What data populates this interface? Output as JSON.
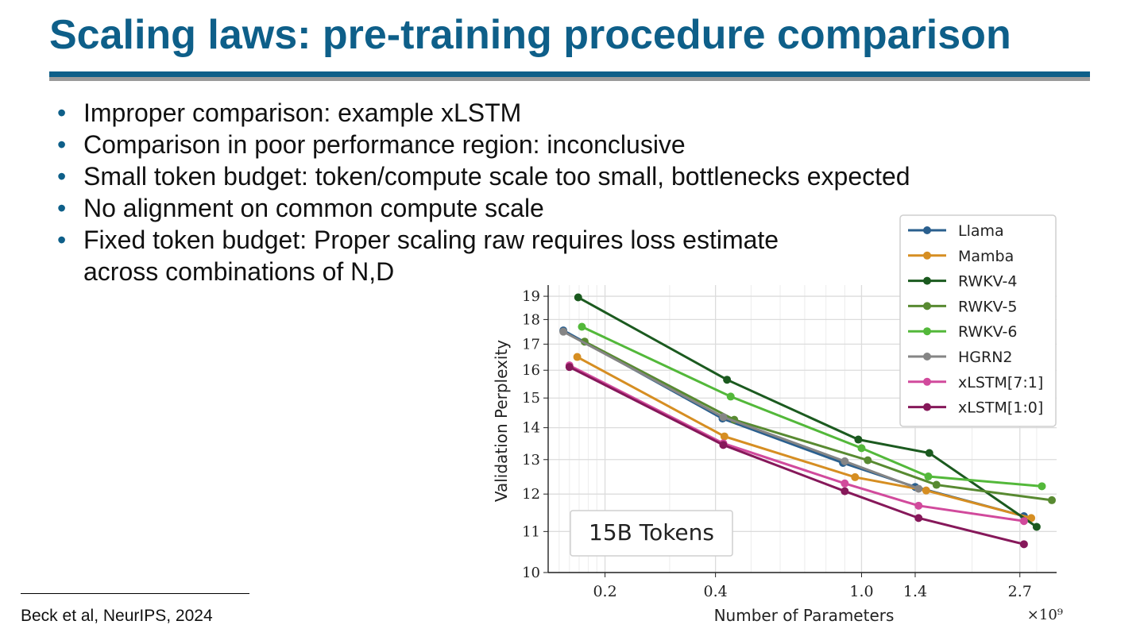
{
  "slide": {
    "title": "Scaling laws: pre-training procedure comparison",
    "bullets": [
      {
        "lines": [
          "Improper comparison: example xLSTM"
        ]
      },
      {
        "lines": [
          "Comparison in poor performance region: inconclusive"
        ]
      },
      {
        "lines": [
          "Small token budget: token/compute scale too small, bottlenecks expected"
        ]
      },
      {
        "lines": [
          "No alignment on common compute scale"
        ]
      },
      {
        "lines": [
          "Fixed token budget: Proper scaling raw requires loss estimate",
          "across combinations of N,D"
        ]
      }
    ],
    "footnote": "Beck et al, NeurIPS, 2024"
  },
  "chart_data": {
    "type": "line",
    "xlabel": "Number of Parameters",
    "x_multiplier": "×10⁹",
    "ylabel": "Validation Perplexity",
    "annotation": "15B Tokens",
    "x_scale": "log",
    "y_scale": "log",
    "xlim": [
      0.14,
      3.4
    ],
    "ylim": [
      10,
      19.5
    ],
    "x_ticks": [
      0.2,
      0.4,
      1.0,
      1.4,
      2.7
    ],
    "x_tick_labels": [
      "0.2",
      "0.4",
      "1.0",
      "1.4",
      "2.7"
    ],
    "y_ticks": [
      10,
      11,
      12,
      13,
      14,
      15,
      16,
      17,
      18,
      19
    ],
    "y_tick_labels": [
      "10",
      "11",
      "12",
      "13",
      "14",
      "15",
      "16",
      "17",
      "18",
      "19"
    ],
    "grid": true,
    "legend_position": "top-right",
    "series": [
      {
        "name": "Llama",
        "color": "#2a5f8e",
        "x": [
          0.154,
          0.418,
          0.89,
          1.4,
          2.77
        ],
        "y": [
          17.55,
          14.3,
          12.9,
          12.2,
          11.4
        ]
      },
      {
        "name": "Mamba",
        "color": "#d68e22",
        "x": [
          0.168,
          0.423,
          0.96,
          1.5,
          2.9
        ],
        "y": [
          16.5,
          13.72,
          12.48,
          12.1,
          11.35
        ]
      },
      {
        "name": "RWKV-4",
        "color": "#1b5a1f",
        "x": [
          0.169,
          0.43,
          0.98,
          1.53,
          3.0
        ],
        "y": [
          18.95,
          15.65,
          13.62,
          13.2,
          11.12
        ]
      },
      {
        "name": "RWKV-5",
        "color": "#588a31",
        "x": [
          0.176,
          0.45,
          1.04,
          1.6,
          3.3
        ],
        "y": [
          17.1,
          14.26,
          12.98,
          12.26,
          11.83
        ]
      },
      {
        "name": "RWKV-6",
        "color": "#53b83a",
        "x": [
          0.173,
          0.44,
          1.0,
          1.52,
          3.1
        ],
        "y": [
          17.7,
          15.05,
          13.35,
          12.5,
          12.22
        ]
      },
      {
        "name": "HGRN2",
        "color": "#858585",
        "x": [
          0.154,
          0.42,
          0.9,
          1.43
        ],
        "y": [
          17.5,
          14.35,
          12.95,
          12.15
        ]
      },
      {
        "name": "xLSTM[7:1]",
        "color": "#d14a9c",
        "x": [
          0.16,
          0.42,
          0.9,
          1.43,
          2.77
        ],
        "y": [
          16.18,
          13.5,
          12.3,
          11.68,
          11.27
        ]
      },
      {
        "name": "xLSTM[1:0]",
        "color": "#86185a",
        "x": [
          0.16,
          0.42,
          0.9,
          1.43,
          2.77
        ],
        "y": [
          16.12,
          13.45,
          12.08,
          11.35,
          10.68
        ]
      }
    ]
  }
}
